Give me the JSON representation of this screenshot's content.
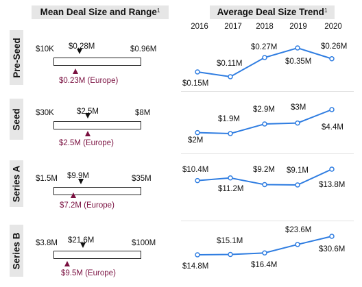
{
  "header": {
    "left_title": "Mean Deal Size and Range",
    "right_title": "Average Deal Size Trend",
    "footnote_mark": "1"
  },
  "years": [
    "2016",
    "2017",
    "2018",
    "2019",
    "2020"
  ],
  "colors": {
    "trend_line": "#2f7de1",
    "europe_marker": "#7a1040",
    "mean_marker": "#111111"
  },
  "chart_data": [
    {
      "type": "range",
      "stage": "Pre-Seed",
      "min_label": "$10K",
      "max_label": "$0.96M",
      "mean_label": "$0.28M",
      "europe_label": "$0.23M (Europe)",
      "min": 0.01,
      "max": 0.96,
      "mean": 0.28,
      "europe": 0.23
    },
    {
      "type": "range",
      "stage": "Seed",
      "min_label": "$30K",
      "max_label": "$8M",
      "mean_label": "$2.5M",
      "europe_label": "$2.5M (Europe)",
      "min": 0.03,
      "max": 8,
      "mean": 2.5,
      "europe": 2.5
    },
    {
      "type": "range",
      "stage": "Series A",
      "min_label": "$1.5M",
      "max_label": "$35M",
      "mean_label": "$9.9M",
      "europe_label": "$7.2M (Europe)",
      "min": 1.5,
      "max": 35,
      "mean": 9.9,
      "europe": 7.2
    },
    {
      "type": "range",
      "stage": "Series B",
      "min_label": "$3.8M",
      "max_label": "$100M",
      "mean_label": "$21.6M",
      "europe_label": "$9.5M (Europe)",
      "min": 3.8,
      "max": 100,
      "mean": 21.6,
      "europe": 9.5
    },
    {
      "type": "line",
      "stage": "Pre-Seed",
      "x": [
        "2016",
        "2017",
        "2018",
        "2019",
        "2020"
      ],
      "values": [
        0.15,
        0.11,
        0.27,
        0.35,
        0.26
      ],
      "labels": [
        "$0.15M",
        "$0.11M",
        "$0.27M",
        "$0.35M",
        "$0.26M"
      ]
    },
    {
      "type": "line",
      "stage": "Seed",
      "x": [
        "2016",
        "2017",
        "2018",
        "2019",
        "2020"
      ],
      "values": [
        2,
        1.9,
        2.9,
        3,
        4.4
      ],
      "labels": [
        "$2M",
        "$1.9M",
        "$2.9M",
        "$3M",
        "$4.4M"
      ]
    },
    {
      "type": "line",
      "stage": "Series A",
      "x": [
        "2016",
        "2017",
        "2018",
        "2019",
        "2020"
      ],
      "values": [
        10.4,
        11.2,
        9.2,
        9.1,
        13.8
      ],
      "labels": [
        "$10.4M",
        "$11.2M",
        "$9.2M",
        "$9.1M",
        "$13.8M"
      ]
    },
    {
      "type": "line",
      "stage": "Series B",
      "x": [
        "2016",
        "2017",
        "2018",
        "2019",
        "2020"
      ],
      "values": [
        14.8,
        15.1,
        16.4,
        23.6,
        30.6
      ],
      "labels": [
        "$14.8M",
        "$15.1M",
        "$16.4M",
        "$23.6M",
        "$30.6M"
      ]
    }
  ]
}
